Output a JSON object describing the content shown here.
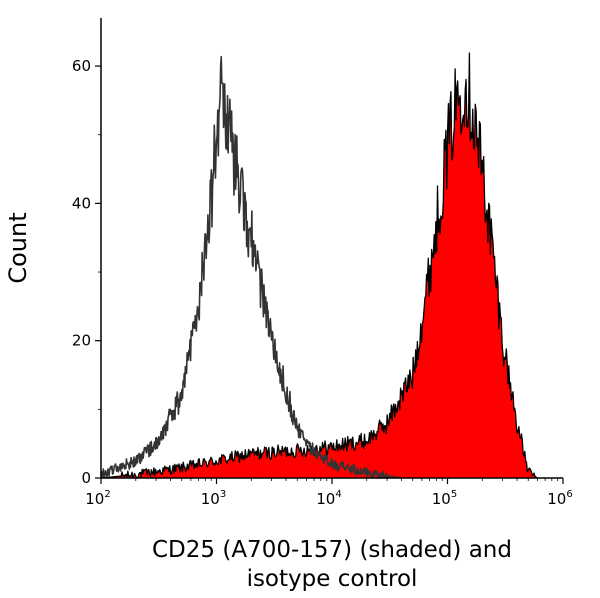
{
  "chart_data": {
    "type": "area",
    "title": "",
    "xlabel_lines": [
      "CD25 (A700-157) (shaded) and",
      "isotype control"
    ],
    "ylabel": "Count",
    "x_scale": "log",
    "xlim": [
      100,
      1000000
    ],
    "ylim": [
      0,
      67
    ],
    "x_ticks": [
      {
        "value": 100,
        "base": "10",
        "exp": "2"
      },
      {
        "value": 1000,
        "base": "10",
        "exp": "3"
      },
      {
        "value": 10000,
        "base": "10",
        "exp": "4"
      },
      {
        "value": 100000,
        "base": "10",
        "exp": "5"
      },
      {
        "value": 1000000,
        "base": "10",
        "exp": "6"
      }
    ],
    "y_ticks": [
      {
        "value": 0,
        "label": "0"
      },
      {
        "value": 20,
        "label": "20"
      },
      {
        "value": 40,
        "label": "40"
      },
      {
        "value": 60,
        "label": "60"
      }
    ],
    "grid": false,
    "legend": "none",
    "series": [
      {
        "style": "filled",
        "fill_color": "#ff0000",
        "line_color": "#000000",
        "x": [
          100,
          200,
          500,
          1000,
          2000,
          5000,
          10000,
          20000,
          30000,
          50000,
          70000,
          100000,
          120000,
          140000,
          160000,
          200000,
          250000,
          300000,
          400000,
          500000,
          600000
        ],
        "y": [
          0,
          0.5,
          1.5,
          2.5,
          3.5,
          4,
          4.5,
          5.5,
          8,
          15,
          30,
          48,
          55,
          58,
          55,
          45,
          32,
          20,
          8,
          1,
          0
        ]
      },
      {
        "style": "outline",
        "line_color": "#333333",
        "x": [
          100,
          200,
          300,
          500,
          700,
          900,
          1000,
          1100,
          1300,
          1600,
          2000,
          3000,
          4000,
          5000,
          7000,
          10000,
          20000,
          40000
        ],
        "y": [
          0.5,
          2.5,
          5,
          12,
          25,
          40,
          52,
          55,
          50,
          42,
          35,
          20,
          13,
          7,
          4,
          2,
          0.8,
          0
        ]
      }
    ],
    "colors": {
      "shaded": "#ff0000",
      "outline": "#333333",
      "axis": "#000000"
    }
  }
}
